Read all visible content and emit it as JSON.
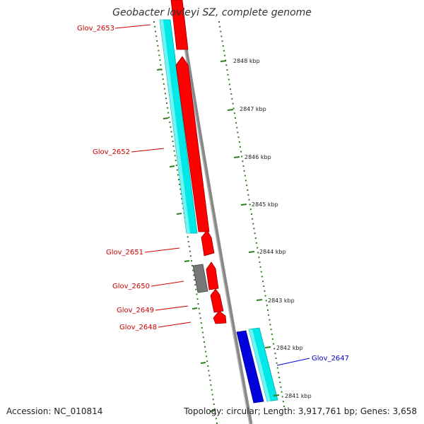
{
  "title": "Geobacter lovleyi SZ, complete genome",
  "footer": {
    "accession": "Accession: NC_010814",
    "summary": "Topology: circular; Length: 3,917,761 bp; Genes: 3,658"
  },
  "colors": {
    "background": "#ffffff",
    "backbone": "#888888",
    "tick": "#2e7d1e",
    "cds_forward": "#ff0000",
    "cds_reverse": "#0000dd",
    "feature_cyan": "#00e8e8",
    "feature_gray": "#777777",
    "label_forward": "#cc0000",
    "label_reverse": "#0000cc"
  },
  "scale": {
    "labels": [
      "2848 kbp",
      "2847 kbp",
      "2846 kbp",
      "2845 kbp",
      "2844 kbp",
      "2843 kbp",
      "2842 kbp",
      "2841 kbp"
    ]
  },
  "genes": [
    {
      "name": "Glov_2653",
      "strand": "forward"
    },
    {
      "name": "Glov_2652",
      "strand": "forward"
    },
    {
      "name": "Glov_2651",
      "strand": "forward"
    },
    {
      "name": "Glov_2650",
      "strand": "forward"
    },
    {
      "name": "Glov_2649",
      "strand": "forward"
    },
    {
      "name": "Glov_2648",
      "strand": "forward"
    },
    {
      "name": "Glov_2647",
      "strand": "reverse"
    }
  ]
}
